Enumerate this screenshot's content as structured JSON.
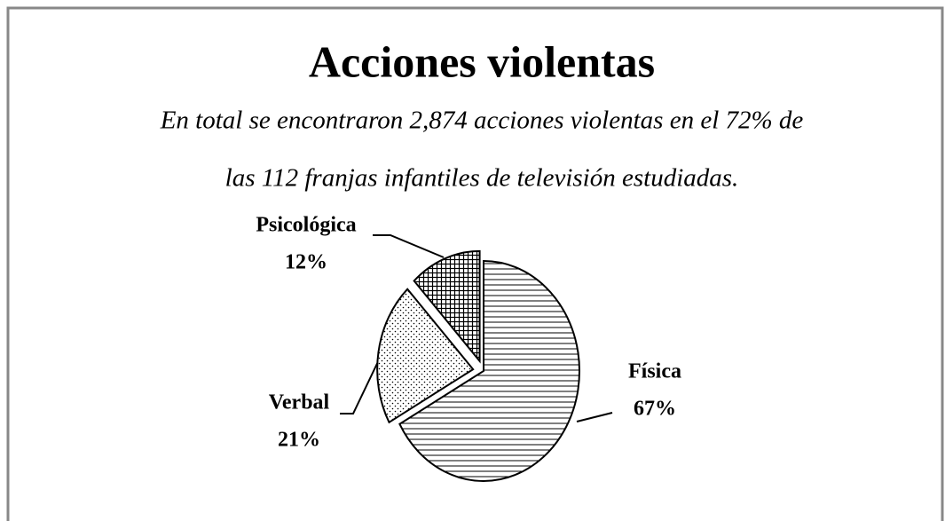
{
  "chart_data": {
    "type": "pie",
    "title": "Acciones violentas",
    "subtitle": [
      "En total se encontraron 2,874 acciones violentas en el 72% de",
      "las 112 franjas infantiles de televisión estudiadas."
    ],
    "categories": [
      "Física",
      "Verbal",
      "Psicológica"
    ],
    "values": [
      67,
      21,
      12
    ],
    "value_labels": [
      "67%",
      "21%",
      "12%"
    ]
  }
}
